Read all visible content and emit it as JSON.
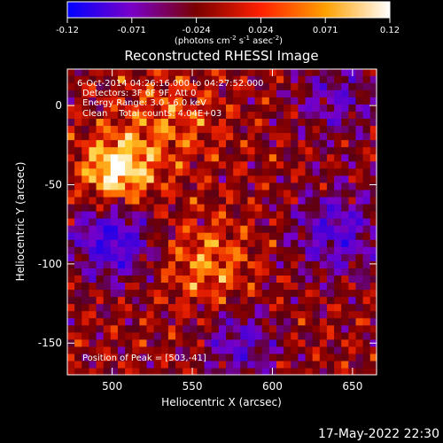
{
  "chart_data": {
    "type": "heatmap",
    "title": "Reconstructed RHESSI Image",
    "xlabel": "Heliocentric X (arcsec)",
    "ylabel": "Heliocentric Y (arcsec)",
    "xlim": [
      472,
      665
    ],
    "ylim": [
      -170,
      23
    ],
    "x_ticks": [
      500,
      550,
      600,
      650
    ],
    "y_ticks": [
      0,
      -50,
      -100,
      -150
    ],
    "colorbar": {
      "range": [
        -0.12,
        0.12
      ],
      "ticks": [
        "-0.12",
        "-0.071",
        "-0.024",
        "0.024",
        "0.071",
        "0.12"
      ],
      "units_text": "(photons cm",
      "units_sup1": "-2",
      "units_mid": " s",
      "units_sup2": "-1",
      "units_mid2": " asec",
      "units_sup3": "-2",
      "units_end": ")",
      "colors": [
        "#0000ff",
        "#7a00c8",
        "#7a0000",
        "#ff2000",
        "#ffa000",
        "#ffffff"
      ]
    },
    "peak": {
      "x": 503,
      "y": -41,
      "value": 0.12
    },
    "annotations": [
      "6-Oct-2014 04:26:16.000 to 04:27:52.000",
      "Detectors: 3F 6F 9F, Att 0",
      "Energy Range: 3.0 - 6.0 keV",
      "Clean    Total counts: 4.04E+03"
    ],
    "peak_label": "Position of Peak = [503,-41]"
  },
  "timestamp": "17-May-2022 22:30"
}
